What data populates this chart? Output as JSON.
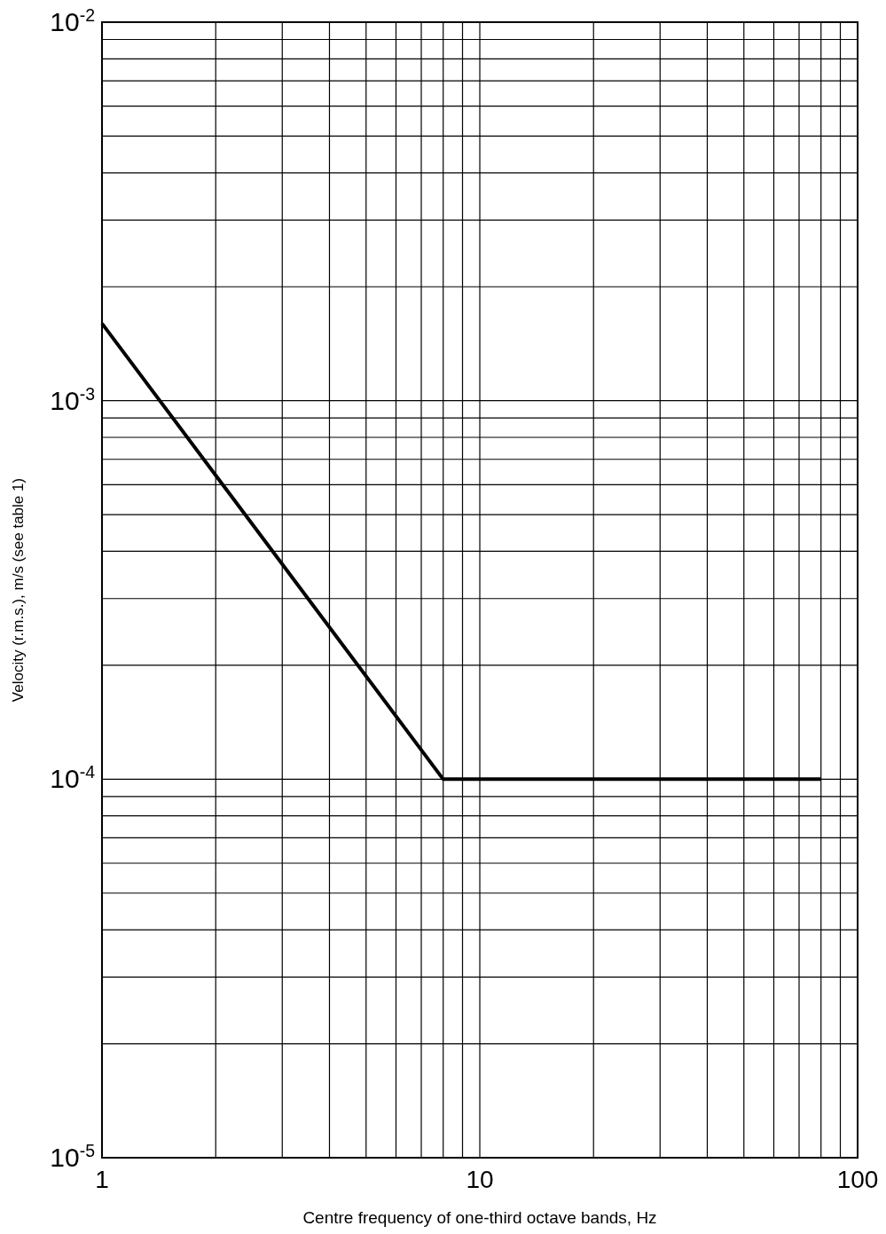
{
  "chart_data": {
    "type": "line",
    "xlabel": "Centre frequency of one-third octave bands, Hz",
    "ylabel": "Velocity (r.m.s.), m/s (see table 1)",
    "log": "xy",
    "grid": true,
    "line_style": "solid",
    "marker": "none",
    "xlim": [
      1,
      100
    ],
    "ylim": [
      1e-05,
      0.01
    ],
    "xticks": [
      1,
      {
        "value": 2,
        "label": null
      },
      {
        "value": 3,
        "label": null
      },
      {
        "value": 4,
        "label": null
      },
      {
        "value": 5,
        "label": null
      },
      {
        "value": 6,
        "label": null
      },
      {
        "value": 7,
        "label": null
      },
      {
        "value": 8,
        "label": null
      },
      {
        "value": 9,
        "label": null
      },
      10,
      {
        "value": 20,
        "label": null
      },
      {
        "value": 30,
        "label": null
      },
      {
        "value": 40,
        "label": null
      },
      {
        "value": 50,
        "label": null
      },
      {
        "value": 60,
        "label": null
      },
      {
        "value": 70,
        "label": null
      },
      {
        "value": 80,
        "label": null
      },
      {
        "value": 90,
        "label": null
      },
      100
    ],
    "yticks": [
      {
        "value": 1e-05,
        "label": "10$^{-5}$"
      },
      {
        "value": 2e-05,
        "label": null
      },
      {
        "value": 3e-05,
        "label": null
      },
      {
        "value": 4e-05,
        "label": null
      },
      {
        "value": 5e-05,
        "label": null
      },
      {
        "value": 6e-05,
        "label": null
      },
      {
        "value": 7e-05,
        "label": null
      },
      {
        "value": 8e-05,
        "label": null
      },
      {
        "value": 9e-05,
        "label": null
      },
      {
        "value": 0.0001,
        "label": "10$^{-4}$"
      },
      {
        "value": 0.0002,
        "label": null
      },
      {
        "value": 0.0003,
        "label": null
      },
      {
        "value": 0.0004,
        "label": null
      },
      {
        "value": 0.0005,
        "label": null
      },
      {
        "value": 0.0006,
        "label": null
      },
      {
        "value": 0.0007,
        "label": null
      },
      {
        "value": 0.0008,
        "label": null
      },
      {
        "value": 0.0009,
        "label": null
      },
      {
        "value": 0.001,
        "label": "10$^{-3}$"
      },
      {
        "value": 0.002,
        "label": null
      },
      {
        "value": 0.003,
        "label": null
      },
      {
        "value": 0.004,
        "label": null
      },
      {
        "value": 0.005,
        "label": null
      },
      {
        "value": 0.006,
        "label": null
      },
      {
        "value": 0.007,
        "label": null
      },
      {
        "value": 0.008,
        "label": null
      },
      {
        "value": 0.009,
        "label": null
      },
      {
        "value": 0.01,
        "label": "10$^{-2}$"
      }
    ],
    "series": [
      {
        "color": "#000000",
        "x": [
          1,
          8,
          80
        ],
        "values": [
          0.0016,
          0.0001,
          0.0001
        ]
      }
    ]
  }
}
